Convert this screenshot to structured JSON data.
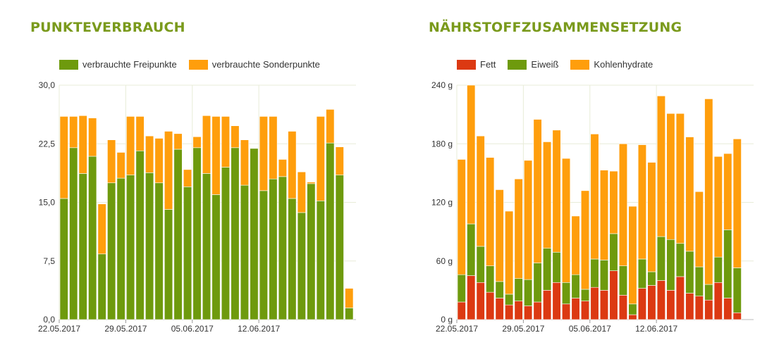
{
  "chart_data": [
    {
      "type": "bar",
      "stacked": true,
      "title": "PUNKTEVERBRAUCH",
      "ylim": [
        0,
        30
      ],
      "yticks": [
        "0,0",
        "7,5",
        "15,0",
        "22,5",
        "30,0"
      ],
      "xtick_labels": [
        {
          "label": "22.05.2017",
          "index": 0
        },
        {
          "label": "29.05.2017",
          "index": 7
        },
        {
          "label": "05.06.2017",
          "index": 14
        },
        {
          "label": "12.06.2017",
          "index": 21
        }
      ],
      "grid": true,
      "legend_position": "top-left",
      "series": [
        {
          "name": "verbrauchte Freipunkte",
          "color": "#6e9a0d",
          "values": [
            15.5,
            22.0,
            18.7,
            20.9,
            8.4,
            17.5,
            18.1,
            18.5,
            21.6,
            18.8,
            17.5,
            14.1,
            21.8,
            17.0,
            22.0,
            18.7,
            16.0,
            19.5,
            22.0,
            17.2,
            21.9,
            16.5,
            18.0,
            18.3,
            15.5,
            13.7,
            17.4,
            15.2,
            22.6,
            18.5,
            1.5
          ]
        },
        {
          "name": "verbrauchte Sonderpunkte",
          "color": "#ff9e0c",
          "values": [
            10.5,
            4.0,
            7.4,
            4.9,
            6.4,
            5.5,
            3.3,
            7.5,
            4.4,
            4.7,
            5.7,
            10.0,
            2.0,
            2.2,
            1.4,
            7.4,
            10.0,
            6.5,
            2.8,
            5.8,
            0.0,
            9.5,
            8.0,
            2.2,
            8.6,
            5.2,
            0.2,
            10.8,
            4.3,
            3.6,
            2.5
          ]
        }
      ]
    },
    {
      "type": "bar",
      "stacked": true,
      "title": "NÄHRSTOFFZUSAMMENSETZUNG",
      "ylim": [
        0,
        240
      ],
      "yticks": [
        "0 g",
        "60 g",
        "120 g",
        "180 g",
        "240 g"
      ],
      "xtick_labels": [
        {
          "label": "22.05.2017",
          "index": 0
        },
        {
          "label": "29.05.2017",
          "index": 7
        },
        {
          "label": "05.06.2017",
          "index": 14
        },
        {
          "label": "12.06.2017",
          "index": 21
        }
      ],
      "grid": true,
      "legend_position": "top-left",
      "series": [
        {
          "name": "Fett",
          "color": "#dc3912",
          "values": [
            18,
            45,
            38,
            28,
            22,
            15,
            19,
            14,
            18,
            30,
            38,
            16,
            22,
            19,
            33,
            30,
            50,
            25,
            5,
            32,
            35,
            40,
            30,
            44,
            27,
            24,
            20,
            38,
            22,
            7,
            0
          ]
        },
        {
          "name": "Eiweiß",
          "color": "#6e9a0d",
          "values": [
            28,
            53,
            37,
            27,
            17,
            11,
            23,
            27,
            40,
            43,
            31,
            22,
            24,
            12,
            29,
            31,
            38,
            30,
            11,
            30,
            14,
            45,
            52,
            34,
            43,
            30,
            16,
            26,
            70,
            46,
            0
          ]
        },
        {
          "name": "Kohlenhydrate",
          "color": "#ff9e0c",
          "values": [
            118,
            142,
            113,
            111,
            94,
            85,
            102,
            122,
            147,
            109,
            125,
            127,
            60,
            101,
            128,
            92,
            64,
            125,
            100,
            117,
            112,
            144,
            129,
            133,
            117,
            77,
            190,
            103,
            78,
            132,
            0
          ]
        }
      ]
    }
  ]
}
